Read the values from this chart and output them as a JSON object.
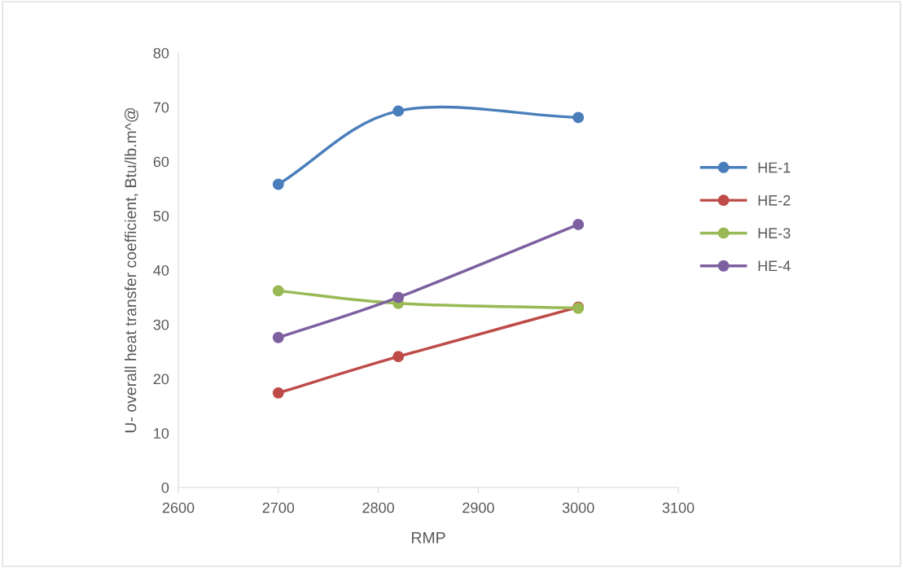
{
  "chart_data": {
    "type": "line",
    "xlabel": "RMP",
    "ylabel": "U- overall heat transfer coefficient, Btu/lb.m^@",
    "x": [
      2700,
      2820,
      3000
    ],
    "series": [
      {
        "name": "HE-1",
        "color": "#4a7ebb",
        "values": [
          55.8,
          69.3,
          68.1
        ]
      },
      {
        "name": "HE-2",
        "color": "#be4b48",
        "values": [
          17.4,
          24.1,
          33.2
        ]
      },
      {
        "name": "HE-3",
        "color": "#98b954",
        "values": [
          36.2,
          33.9,
          33.0
        ]
      },
      {
        "name": "HE-4",
        "color": "#7d60a0",
        "values": [
          27.6,
          35.0,
          48.4
        ]
      }
    ],
    "xlim": [
      2600,
      3100
    ],
    "xticks": [
      2600,
      2700,
      2800,
      2900,
      3000,
      3100
    ],
    "ylim": [
      0,
      80
    ],
    "yticks": [
      0,
      10,
      20,
      30,
      40,
      50,
      60,
      70,
      80
    ],
    "marker": "circle",
    "line_style": "solid",
    "grid": false,
    "legend": "right"
  }
}
